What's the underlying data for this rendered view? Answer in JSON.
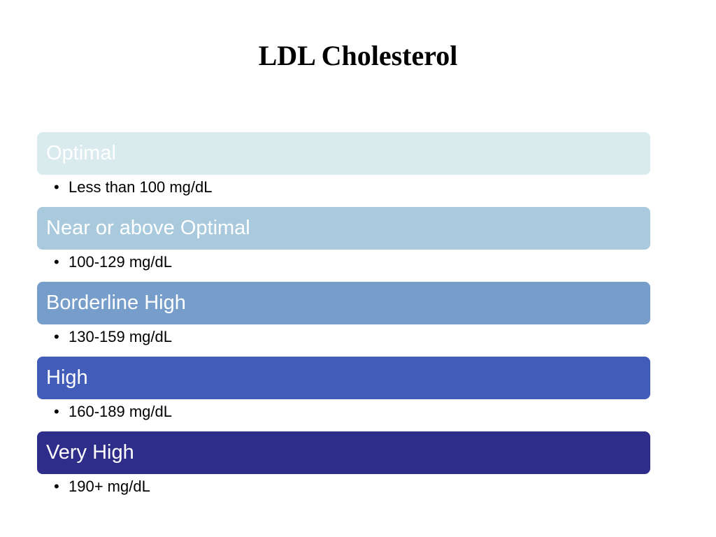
{
  "slide": {
    "title": "LDL Cholesterol",
    "bullet_glyph": "•",
    "levels": [
      {
        "label": "Optimal",
        "detail": "Less than 100 mg/dL",
        "color": "#DAEBEE"
      },
      {
        "label": "Near or above Optimal",
        "detail": "100-129 mg/dL",
        "color": "#A8CADC"
      },
      {
        "label": "Borderline High",
        "detail": "130-159 mg/dL",
        "color": "#779ECB"
      },
      {
        "label": "High",
        "detail": "160-189 mg/dL",
        "color": "#415CB9"
      },
      {
        "label": "Very High",
        "detail": "190+ mg/dL",
        "color": "#2E2E8A"
      }
    ]
  }
}
